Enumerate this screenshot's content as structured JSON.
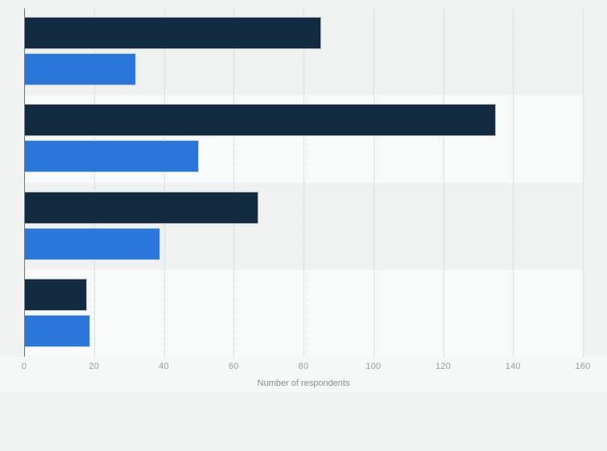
{
  "page": {
    "background": "#f1f2f2",
    "band_color": "#f0f1f1",
    "band_color_alt": "#f8f9f9"
  },
  "chart_data": {
    "type": "bar",
    "orientation": "horizontal",
    "title": "",
    "xlabel": "Number of respondents",
    "ylabel": "",
    "categories": [
      "",
      "",
      "",
      ""
    ],
    "series": [
      {
        "name": "dark-navy-series",
        "color": "#132b41",
        "values": [
          85,
          135,
          67,
          18
        ]
      },
      {
        "name": "blue-series",
        "color": "#2b76d9",
        "values": [
          32,
          50,
          39,
          19
        ]
      }
    ],
    "xlim": [
      0,
      160
    ],
    "xticks": [
      0,
      20,
      40,
      60,
      80,
      100,
      120,
      140,
      160
    ],
    "grid": "vertical-dotted",
    "legend": "none",
    "axis_line_color": "#767676",
    "gridline_color": "#c9c9c9",
    "tick_label_color": "#9b9b9b"
  }
}
